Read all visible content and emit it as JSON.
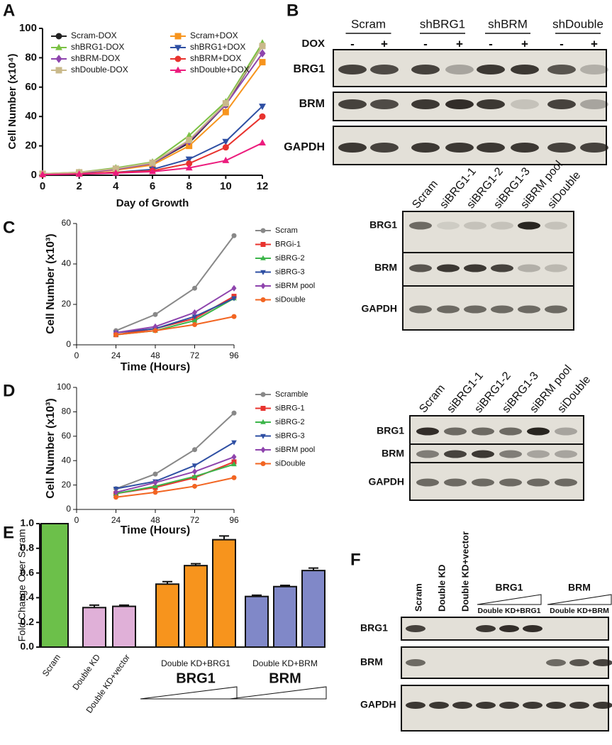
{
  "panel_labels": [
    "A",
    "B",
    "C",
    "D",
    "E",
    "F"
  ],
  "chart_data": [
    {
      "type": "line",
      "xlabel": "Day of Growth",
      "ylabel": "Cell Number (x10⁴)",
      "x": [
        0,
        2,
        4,
        6,
        8,
        10,
        12
      ],
      "xlim": [
        0,
        12
      ],
      "xticks": [
        0,
        2,
        4,
        6,
        8,
        10,
        12
      ],
      "ylim": [
        0,
        100
      ],
      "yticks": [
        0,
        20,
        40,
        60,
        80,
        100
      ],
      "series": [
        {
          "name": "Scram-DOX",
          "color": "#222222",
          "marker": "circle",
          "values": [
            1,
            1.5,
            4,
            8,
            22,
            48,
            88
          ]
        },
        {
          "name": "Scram+DOX",
          "color": "#f7941d",
          "marker": "square",
          "values": [
            1,
            1.5,
            3.5,
            7,
            20,
            43,
            77
          ]
        },
        {
          "name": "shBRG1-DOX",
          "color": "#7ac143",
          "marker": "triangle",
          "values": [
            1,
            2,
            5,
            9,
            27,
            50,
            90
          ]
        },
        {
          "name": "shBRG1+DOX",
          "color": "#2e4fa3",
          "marker": "triangle-down",
          "values": [
            1,
            1,
            2,
            4,
            11,
            23,
            47
          ]
        },
        {
          "name": "shBRM-DOX",
          "color": "#8e44ad",
          "marker": "diamond",
          "values": [
            1,
            1.5,
            4,
            8,
            23,
            48,
            83
          ]
        },
        {
          "name": "shBRM+DOX",
          "color": "#e8332e",
          "marker": "circle",
          "values": [
            0.5,
            1,
            2,
            3,
            8,
            19,
            40
          ]
        },
        {
          "name": "shDouble-DOX",
          "color": "#c9b98a",
          "marker": "square",
          "values": [
            1,
            2,
            4.5,
            8.5,
            24,
            49,
            88
          ]
        },
        {
          "name": "shDouble+DOX",
          "color": "#ec1c7d",
          "marker": "triangle",
          "values": [
            0.5,
            0.8,
            1.5,
            2.5,
            5,
            10,
            22
          ]
        }
      ]
    },
    {
      "type": "line",
      "xlabel": "Time (Hours)",
      "ylabel": "Cell Number (x10³)",
      "x": [
        24,
        48,
        72,
        96
      ],
      "xlim": [
        0,
        96
      ],
      "xticks": [
        0,
        24,
        48,
        72,
        96
      ],
      "ylim": [
        0,
        60
      ],
      "yticks": [
        0,
        20,
        40,
        60
      ],
      "series": [
        {
          "name": "Scram",
          "color": "#888888",
          "marker": "circle",
          "values": [
            7,
            15,
            28,
            54
          ]
        },
        {
          "name": "BRGi-1",
          "color": "#e8332e",
          "marker": "square",
          "values": [
            5,
            8,
            13,
            24
          ]
        },
        {
          "name": "siBRG-2",
          "color": "#3cb54a",
          "marker": "triangle",
          "values": [
            5,
            7,
            12,
            23
          ]
        },
        {
          "name": "siBRG-3",
          "color": "#2e4fa3",
          "marker": "triangle-down",
          "values": [
            6,
            8,
            14,
            23
          ]
        },
        {
          "name": "siBRM pool",
          "color": "#8e44ad",
          "marker": "diamond",
          "values": [
            6,
            9,
            16,
            28
          ]
        },
        {
          "name": "siDouble",
          "color": "#f26522",
          "marker": "circle",
          "values": [
            5,
            7,
            10,
            14
          ]
        }
      ]
    },
    {
      "type": "line",
      "xlabel": "Time (Hours)",
      "ylabel": "Cell Number (x10³)",
      "x": [
        24,
        48,
        72,
        96
      ],
      "xlim": [
        0,
        96
      ],
      "xticks": [
        0,
        24,
        48,
        72,
        96
      ],
      "ylim": [
        0,
        100
      ],
      "yticks": [
        0,
        20,
        40,
        60,
        80,
        100
      ],
      "series": [
        {
          "name": "Scramble",
          "color": "#888888",
          "marker": "circle",
          "values": [
            17,
            29,
            49,
            79
          ]
        },
        {
          "name": "siBRG-1",
          "color": "#e8332e",
          "marker": "square",
          "values": [
            13,
            18,
            26,
            39
          ]
        },
        {
          "name": "siBRG-2",
          "color": "#3cb54a",
          "marker": "triangle",
          "values": [
            13,
            19,
            27,
            37
          ]
        },
        {
          "name": "siBRG-3",
          "color": "#2e4fa3",
          "marker": "triangle-down",
          "values": [
            17,
            23,
            36,
            55
          ]
        },
        {
          "name": "siBRM pool",
          "color": "#8e44ad",
          "marker": "diamond",
          "values": [
            14,
            22,
            31,
            43
          ]
        },
        {
          "name": "siDouble",
          "color": "#f26522",
          "marker": "circle",
          "values": [
            10,
            14,
            19,
            26
          ]
        }
      ]
    },
    {
      "type": "bar",
      "ylabel": "Fold Change Over Scram",
      "categories": [
        "Scram",
        "Double KD",
        "Double KD+vector",
        null,
        "Double KD+BRG1",
        null,
        null,
        "Double KD+BRM",
        null
      ],
      "values": [
        1.0,
        0.32,
        0.33,
        0.51,
        0.66,
        0.87,
        0.41,
        0.49,
        0.62
      ],
      "errors": [
        0,
        0.02,
        0.01,
        0.02,
        0.015,
        0.03,
        0.01,
        0.01,
        0.02
      ],
      "colors": [
        "#6cc04a",
        "#e0b0d8",
        "#e0b0d8",
        "#f7941d",
        "#f7941d",
        "#f7941d",
        "#8088c8",
        "#8088c8",
        "#8088c8"
      ],
      "group_labels": [
        "BRG1",
        "BRM"
      ],
      "ylim": [
        0,
        1.0
      ],
      "yticks": [
        {
          "value": 0,
          "label": "0.0"
        },
        0.2,
        0.4,
        0.6,
        0.8,
        {
          "value": 1.0,
          "label": "1.0"
        }
      ]
    }
  ],
  "blots": [
    {
      "groups": [
        "Scram",
        "shBRG1",
        "shBRM",
        "shDouble"
      ],
      "treatment": "DOX",
      "lanes": [
        "-",
        "+",
        "-",
        "+",
        "-",
        "+",
        "-",
        "+"
      ],
      "rows": [
        "BRG1",
        "BRM",
        "GAPDH"
      ]
    },
    {
      "lanes": [
        "Scram",
        "siBRG1-1",
        "siBRG1-2",
        "siBRG1-3",
        "siBRM pool",
        "siDouble"
      ],
      "rows": [
        "BRG1",
        "BRM",
        "GAPDH"
      ]
    },
    {
      "lanes": [
        "Scram",
        "siBRG1-1",
        "siBRG1-2",
        "siBRG1-3",
        "siBRM pool",
        "siDouble"
      ],
      "rows": [
        "BRG1",
        "BRM",
        "GAPDH"
      ]
    },
    {
      "lanes": [
        "Scram",
        "Double KD",
        "Double KD+vector"
      ],
      "groups": [
        "BRG1",
        "BRM"
      ],
      "group_sublabels": [
        "Double KD+BRG1",
        "Double KD+BRM"
      ],
      "rows": [
        "BRG1",
        "BRM",
        "GAPDH"
      ]
    }
  ]
}
